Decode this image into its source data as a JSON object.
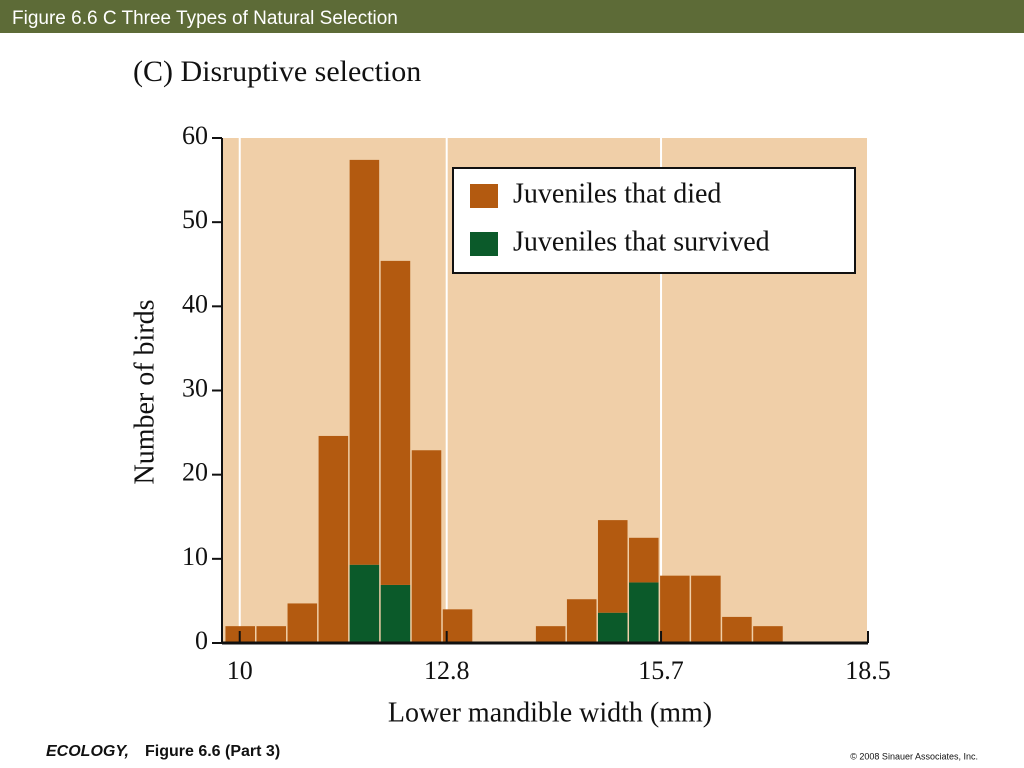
{
  "header": "Figure 6.6 C  Three Types of Natural Selection",
  "chart_data": {
    "type": "histogram",
    "title": "(C)  Disruptive selection",
    "x_label": "Lower mandible width (mm)",
    "y_label": "Number of birds",
    "bins": [
      9.8,
      10.22,
      10.64,
      11.06,
      11.48,
      11.9,
      12.32,
      12.74,
      13.16,
      13.58,
      14.0,
      14.42,
      14.84,
      15.26,
      15.68,
      16.1,
      16.52,
      16.94,
      17.36
    ],
    "stacked": true,
    "series": [
      {
        "name": "Juveniles that died",
        "color": "#b35a10",
        "values": [
          2,
          2,
          4.7,
          24.6,
          48.1,
          38.5,
          22.9,
          4,
          0,
          0,
          2,
          5.2,
          11,
          5.3,
          8,
          8,
          3.1,
          2
        ]
      },
      {
        "name": "Juveniles that survived",
        "color": "#0b5a2a",
        "values": [
          0,
          0,
          0,
          0,
          9.3,
          6.9,
          0,
          0,
          0,
          0,
          0,
          0,
          3.6,
          7.2,
          0,
          0,
          0,
          0
        ]
      }
    ],
    "xlim": [
      9.76,
      18.5
    ],
    "xticks": [
      10,
      12.8,
      15.7,
      18.5
    ],
    "ylim": [
      0,
      60
    ],
    "yticks": [
      0,
      10,
      20,
      30,
      40,
      50,
      60
    ],
    "grid": "x",
    "background": "#f0cfa8",
    "legend": "upper right"
  },
  "footer": {
    "book": "ECOLOGY,",
    "figure": "Figure 6.6 (Part 3)",
    "copyright": "© 2008 Sinauer Associates, Inc."
  }
}
